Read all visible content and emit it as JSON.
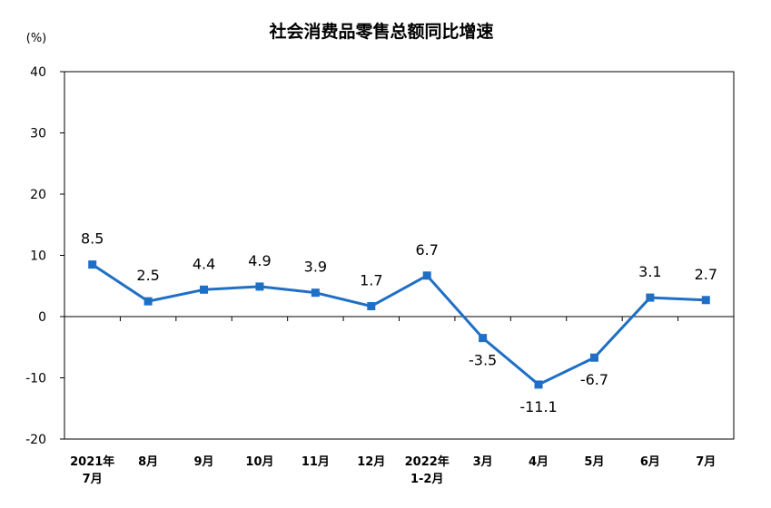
{
  "chart_data": {
    "type": "line",
    "title": "社会消费品零售总额同比增速",
    "ylabel": "(%)",
    "xlabel": "",
    "ylim": [
      -20,
      40
    ],
    "yticks": [
      40,
      30,
      20,
      10,
      0,
      -10,
      -20
    ],
    "categories": [
      [
        "2021年",
        "7月"
      ],
      [
        "8月"
      ],
      [
        "9月"
      ],
      [
        "10月"
      ],
      [
        "11月"
      ],
      [
        "12月"
      ],
      [
        "2022年",
        "1-2月"
      ],
      [
        "3月"
      ],
      [
        "4月"
      ],
      [
        "5月"
      ],
      [
        "6月"
      ],
      [
        "7月"
      ]
    ],
    "series": [
      {
        "values": [
          8.5,
          2.5,
          4.4,
          4.9,
          3.9,
          1.7,
          6.7,
          -3.5,
          -11.1,
          -6.7,
          3.1,
          2.7
        ]
      }
    ],
    "data_labels": [
      "8.5",
      "2.5",
      "4.4",
      "4.9",
      "3.9",
      "1.7",
      "6.7",
      "-3.5",
      "-11.1",
      "-6.7",
      "3.1",
      "2.7"
    ],
    "grid": false,
    "legend": "none",
    "colors": {
      "line": "#1f6fc5",
      "axis": "#000000"
    }
  }
}
